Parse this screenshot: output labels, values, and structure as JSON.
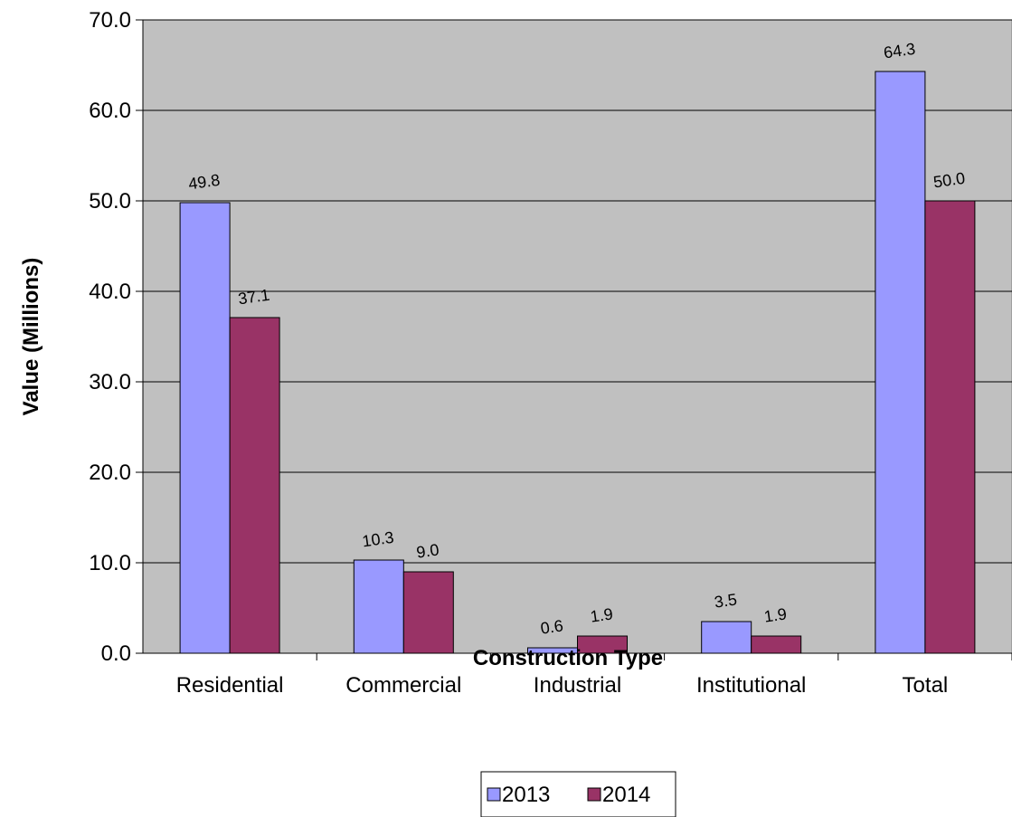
{
  "chart_data": {
    "type": "bar",
    "categories": [
      "Residential",
      "Commercial",
      "Industrial",
      "Institutional",
      "Total"
    ],
    "series": [
      {
        "name": "2013",
        "values": [
          49.8,
          10.3,
          0.6,
          3.5,
          64.3
        ],
        "color": "#9999FF"
      },
      {
        "name": "2014",
        "values": [
          37.1,
          9.0,
          1.9,
          1.9,
          50.0
        ],
        "color": "#993366"
      }
    ],
    "xlabel": "Construction Type",
    "ylabel": "Value (Millions)",
    "ylim": [
      0,
      70
    ],
    "yticks": [
      "0.0",
      "10.0",
      "20.0",
      "30.0",
      "40.0",
      "50.0",
      "60.0",
      "70.0"
    ],
    "data_labels": [
      [
        "49.8",
        "10.3",
        "0.6",
        "3.5",
        "64.3"
      ],
      [
        "37.1",
        "9.0",
        "1.9",
        "1.9",
        "50.0"
      ]
    ],
    "grid": true,
    "plot_background": "#C0C0C0",
    "legend": "bottom"
  }
}
